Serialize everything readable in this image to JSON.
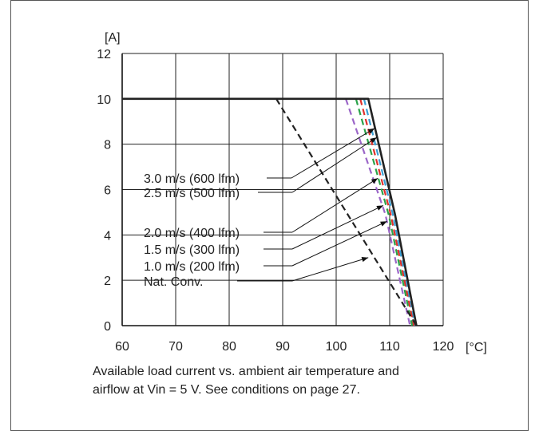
{
  "chart_data": {
    "type": "line",
    "ylabel": "[A]",
    "xlabel": "[°C]",
    "xlim": [
      60,
      120
    ],
    "ylim": [
      0,
      12
    ],
    "xticks": [
      "60",
      "70",
      "80",
      "90",
      "100",
      "110",
      "120"
    ],
    "yticks": [
      "0",
      "2",
      "4",
      "6",
      "8",
      "10",
      "12"
    ],
    "grid": true,
    "series": [
      {
        "name": "3.0 m/s (600 lfm)",
        "color": "#222222",
        "style": "solid",
        "x": [
          60,
          106,
          111,
          115
        ],
        "y": [
          10,
          10,
          4.9,
          0
        ]
      },
      {
        "name": "2.5 m/s (500 lfm)",
        "color": "#3a9fd4",
        "style": "dashed",
        "x": [
          105.2,
          110.6,
          114.7
        ],
        "y": [
          10,
          4.9,
          0
        ]
      },
      {
        "name": "2.0 m/s (400 lfm)",
        "color": "#e0312b",
        "style": "dashed",
        "x": [
          104.5,
          110.2,
          114.5
        ],
        "y": [
          10,
          4.9,
          0
        ]
      },
      {
        "name": "1.5 m/s (300 lfm)",
        "color": "#2aa34a",
        "style": "dashed",
        "x": [
          103.7,
          109.8,
          114.2
        ],
        "y": [
          10,
          4.9,
          0
        ]
      },
      {
        "name": "1.0 m/s (200 lfm)",
        "color": "#9b66c8",
        "style": "dashed",
        "x": [
          101.8,
          109.2,
          113.8
        ],
        "y": [
          10,
          4.9,
          0
        ]
      },
      {
        "name": "Nat. Conv.",
        "color": "#222222",
        "style": "dashed",
        "x": [
          88.8,
          115
        ],
        "y": [
          10,
          0
        ]
      }
    ],
    "annotations": [
      {
        "label": "3.0 m/s (600 lfm)",
        "arrow_to_series": 0
      },
      {
        "label": "2.5 m/s (500 lfm)",
        "arrow_to_series": 1
      },
      {
        "label": "2.0 m/s (400 lfm)",
        "arrow_to_series": 2
      },
      {
        "label": "1.5 m/s (300 lfm)",
        "arrow_to_series": 3
      },
      {
        "label": "1.0 m/s (200 lfm)",
        "arrow_to_series": 4
      },
      {
        "label": "Nat. Conv.",
        "arrow_to_series": 5
      }
    ]
  },
  "caption": {
    "line1": "Available load current vs. ambient air temperature and",
    "line2": "airflow at Vin = 5 V. See conditions on page 27."
  }
}
